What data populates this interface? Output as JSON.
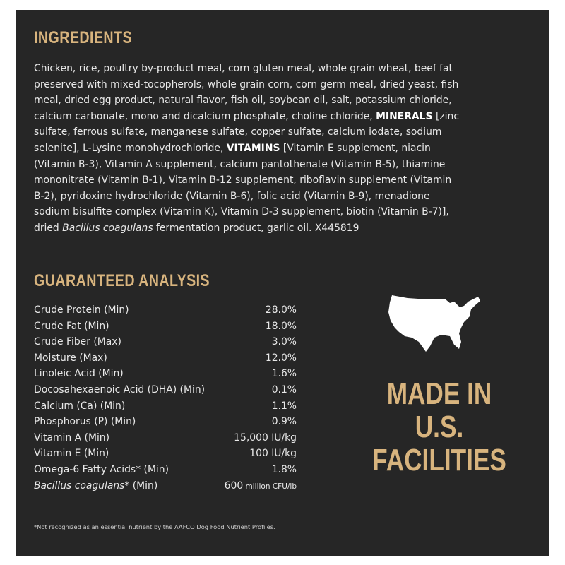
{
  "colors": {
    "background": "#262626",
    "heading": "#d8b47e",
    "text": "#e8e8e8"
  },
  "ingredients": {
    "title": "INGREDIENTS",
    "lines": [
      "Chicken, rice, poultry by-product meal, corn gluten meal, whole grain wheat, beef fat",
      "preserved with mixed-tocopherols, whole grain corn, corn germ meal, dried yeast, fish",
      "meal, dried egg product, natural flavor, fish oil, soybean oil, salt, potassium chloride,",
      "calcium carbonate, mono and dicalcium phosphate, choline chloride, ",
      "MINERALS",
      " [zinc",
      "sulfate, ferrous sulfate, manganese sulfate, copper sulfate, calcium iodate, sodium",
      "selenite], L-Lysine monohydrochloride, ",
      "VITAMINS",
      " [Vitamin E supplement, niacin",
      "(Vitamin B-3), Vitamin A supplement, calcium pantothenate (Vitamin B-5), thiamine",
      "mononitrate (Vitamin B-1), Vitamin B-12 supplement, riboflavin supplement (Vitamin",
      "B-2), pyridoxine hydrochloride (Vitamin B-6), folic acid (Vitamin B-9), menadione",
      "sodium bisulfite complex (Vitamin K), Vitamin D-3 supplement, biotin (Vitamin B-7)],",
      "dried ",
      "Bacillus coagulans",
      " fermentation product, garlic oil. X445819"
    ]
  },
  "analysis": {
    "title": "GUARANTEED ANALYSIS",
    "rows": [
      {
        "label": "Crude Protein (Min)",
        "value": "28.0%"
      },
      {
        "label": "Crude Fat (Min)",
        "value": "18.0%"
      },
      {
        "label": "Crude Fiber (Max)",
        "value": "3.0%"
      },
      {
        "label": "Moisture (Max)",
        "value": "12.0%"
      },
      {
        "label": "Linoleic Acid (Min)",
        "value": "1.6%"
      },
      {
        "label": "Docosahexaenoic Acid (DHA) (Min)",
        "value": "0.1%"
      },
      {
        "label": "Calcium (Ca) (Min)",
        "value": "1.1%"
      },
      {
        "label": "Phosphorus (P) (Min)",
        "value": "0.9%"
      },
      {
        "label": "Vitamin A (Min)",
        "value": "15,000 IU/kg"
      },
      {
        "label": "Vitamin E (Min)",
        "value": "100 IU/kg"
      },
      {
        "label": "Omega-6 Fatty Acids* (Min)",
        "value": "1.8%"
      },
      {
        "label_italic": "Bacillus coagulans",
        "label_rest": "* (Min)",
        "value": "600",
        "unit": " million CFU/lb"
      }
    ]
  },
  "badge": {
    "icon": "usa-map-icon",
    "lines": [
      "MADE IN",
      "U.S.",
      "FACILITIES"
    ]
  },
  "footnote": "*Not recognized as an essential nutrient by the AAFCO Dog Food Nutrient Profiles."
}
